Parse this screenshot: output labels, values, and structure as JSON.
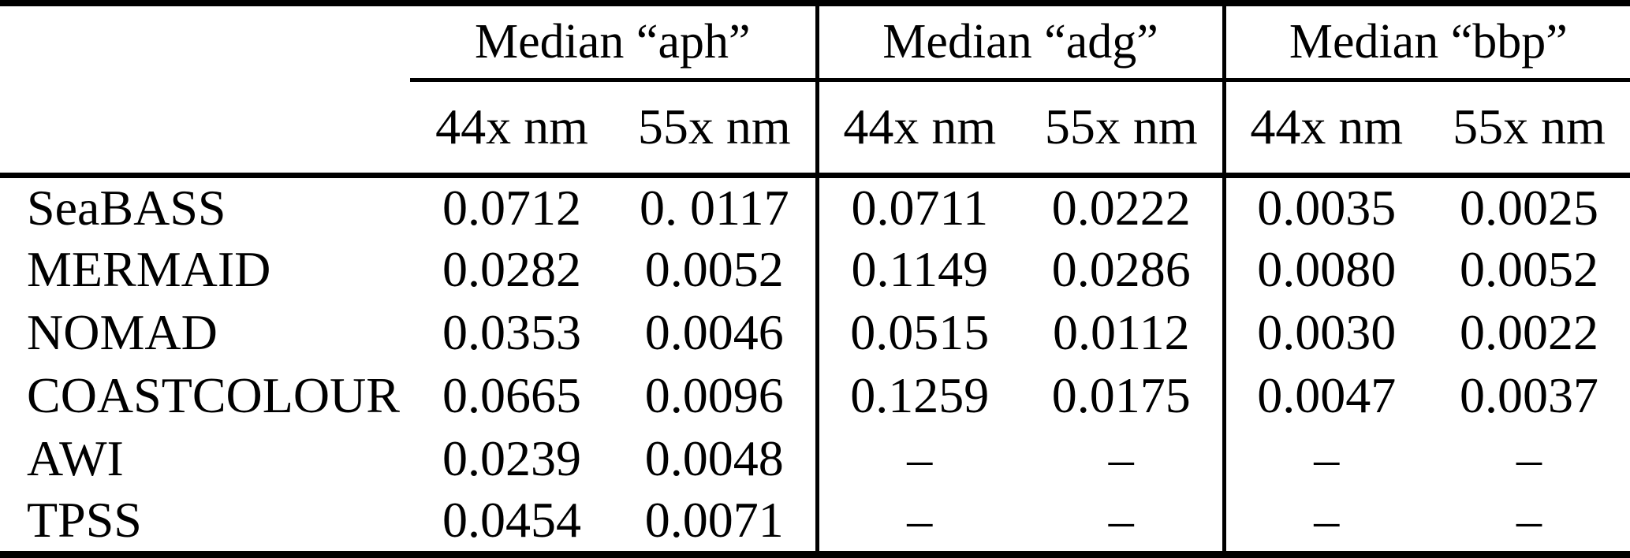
{
  "table": {
    "groups": [
      {
        "label": "Median “aph”"
      },
      {
        "label": "Median “adg”"
      },
      {
        "label": "Median “bbp”"
      }
    ],
    "subheaders": [
      "44x nm",
      "55x nm",
      "44x nm",
      "55x nm",
      "44x nm",
      "55x nm"
    ],
    "rows": [
      {
        "label": "SeaBASS",
        "values": [
          "0.0712",
          "0. 0117",
          "0.0711",
          "0.0222",
          "0.0035",
          "0.0025"
        ]
      },
      {
        "label": "MERMAID",
        "values": [
          "0.0282",
          "0.0052",
          "0.1149",
          "0.0286",
          "0.0080",
          "0.0052"
        ]
      },
      {
        "label": "NOMAD",
        "values": [
          "0.0353",
          "0.0046",
          "0.0515",
          "0.0112",
          "0.0030",
          "0.0022"
        ]
      },
      {
        "label": "COASTCOLOUR",
        "values": [
          "0.0665",
          "0.0096",
          "0.1259",
          "0.0175",
          "0.0047",
          "0.0037"
        ]
      },
      {
        "label": "AWI",
        "values": [
          "0.0239",
          "0.0048",
          "–",
          "–",
          "–",
          "–"
        ]
      },
      {
        "label": "TPSS",
        "values": [
          "0.0454",
          "0.0071",
          "–",
          "–",
          "–",
          "–"
        ]
      }
    ],
    "colors": {
      "text": "#000000",
      "background": "#ffffff",
      "rule": "#000000"
    }
  }
}
